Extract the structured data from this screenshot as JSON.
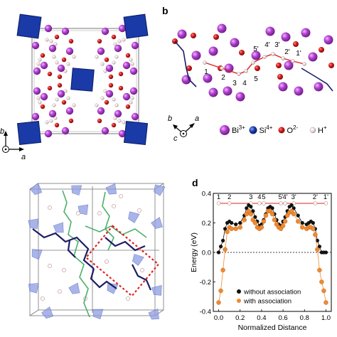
{
  "panels": {
    "b": "b",
    "d": "d"
  },
  "axes_a": {
    "b": "b",
    "a": "a"
  },
  "axes_b": {
    "b": "b",
    "c": "c",
    "a": "a"
  },
  "legend_ions": [
    {
      "base": "Bi",
      "sup": "3+",
      "color": "#b040d0"
    },
    {
      "base": "Si",
      "sup": "4+",
      "color": "#1a3aa8"
    },
    {
      "base": "O",
      "sup": "2-",
      "color": "#d41a1a"
    },
    {
      "base": "H",
      "sup": "+",
      "color": "#e8d8d8"
    }
  ],
  "path_labels_b": [
    "1",
    "2",
    "3",
    "4",
    "5",
    "5'",
    "4'",
    "3'",
    "2'",
    "1'"
  ],
  "colors": {
    "bi": "#b040d0",
    "si": "#1a3aa8",
    "o": "#d41a1a",
    "h": "#f0e4e4",
    "path": "#e02020",
    "bond": "#1c1c66",
    "green": "#4caf6a",
    "poly": "#8c9ce0",
    "box": "#e02020",
    "without": "#111111",
    "with": "#f08a30"
  },
  "chart_data": {
    "type": "line",
    "xlabel": "Normalized Distance",
    "ylabel": "Energy (eV)",
    "xlim": [
      -0.05,
      1.05
    ],
    "ylim": [
      -0.4,
      0.4
    ],
    "xticks": [
      "0.0",
      "0.2",
      "0.4",
      "0.6",
      "0.8",
      "1.0"
    ],
    "yticks": [
      "-0.4",
      "-0.2",
      "0.0",
      "0.2",
      "0.4"
    ],
    "baseline": 0.0,
    "top_labels": [
      {
        "text": "1",
        "x": 0.0
      },
      {
        "text": "2",
        "x": 0.1
      },
      {
        "text": "3",
        "x": 0.3
      },
      {
        "text": "4",
        "x": 0.38
      },
      {
        "text": "5",
        "x": 0.42
      },
      {
        "text": "5'",
        "x": 0.58
      },
      {
        "text": "4'",
        "x": 0.62
      },
      {
        "text": "3'",
        "x": 0.7
      },
      {
        "text": "2'",
        "x": 0.9
      },
      {
        "text": "1'",
        "x": 1.0
      }
    ],
    "legend": "bottom-right",
    "series": [
      {
        "name": "without association",
        "color": "#111111",
        "x": [
          0.0,
          0.02,
          0.04,
          0.06,
          0.08,
          0.1,
          0.12,
          0.16,
          0.2,
          0.24,
          0.26,
          0.28,
          0.3,
          0.32,
          0.34,
          0.36,
          0.38,
          0.4,
          0.42,
          0.44,
          0.46,
          0.48,
          0.5,
          0.52,
          0.54,
          0.56,
          0.58,
          0.6,
          0.62,
          0.64,
          0.66,
          0.68,
          0.7,
          0.74,
          0.78,
          0.82,
          0.84,
          0.86,
          0.88,
          0.9,
          0.92,
          0.94,
          0.96,
          0.98,
          1.0
        ],
        "y": [
          0.0,
          0.04,
          0.08,
          0.16,
          0.2,
          0.21,
          0.2,
          0.19,
          0.2,
          0.25,
          0.3,
          0.32,
          0.31,
          0.28,
          0.24,
          0.21,
          0.18,
          0.19,
          0.22,
          0.26,
          0.3,
          0.31,
          0.3,
          0.26,
          0.22,
          0.19,
          0.18,
          0.21,
          0.24,
          0.28,
          0.31,
          0.32,
          0.3,
          0.25,
          0.2,
          0.19,
          0.2,
          0.21,
          0.2,
          0.16,
          0.08,
          0.04,
          0.0,
          0.0,
          0.0
        ]
      },
      {
        "name": "with association",
        "color": "#f08a30",
        "x": [
          0.0,
          0.02,
          0.04,
          0.06,
          0.08,
          0.1,
          0.12,
          0.16,
          0.2,
          0.24,
          0.26,
          0.28,
          0.3,
          0.32,
          0.34,
          0.36,
          0.38,
          0.4,
          0.42,
          0.44,
          0.46,
          0.48,
          0.5,
          0.52,
          0.54,
          0.56,
          0.58,
          0.6,
          0.62,
          0.64,
          0.66,
          0.68,
          0.7,
          0.74,
          0.78,
          0.82,
          0.84,
          0.86,
          0.88,
          0.9,
          0.92,
          0.94,
          0.96,
          0.98,
          1.0
        ],
        "y": [
          -0.34,
          -0.26,
          -0.12,
          0.02,
          0.14,
          0.17,
          0.16,
          0.16,
          0.17,
          0.22,
          0.26,
          0.28,
          0.26,
          0.22,
          0.2,
          0.17,
          0.16,
          0.17,
          0.21,
          0.25,
          0.28,
          0.28,
          0.26,
          0.22,
          0.19,
          0.17,
          0.16,
          0.18,
          0.21,
          0.25,
          0.27,
          0.28,
          0.26,
          0.21,
          0.17,
          0.16,
          0.17,
          0.17,
          0.16,
          0.12,
          0.02,
          -0.12,
          -0.2,
          -0.26,
          -0.34
        ]
      }
    ]
  }
}
